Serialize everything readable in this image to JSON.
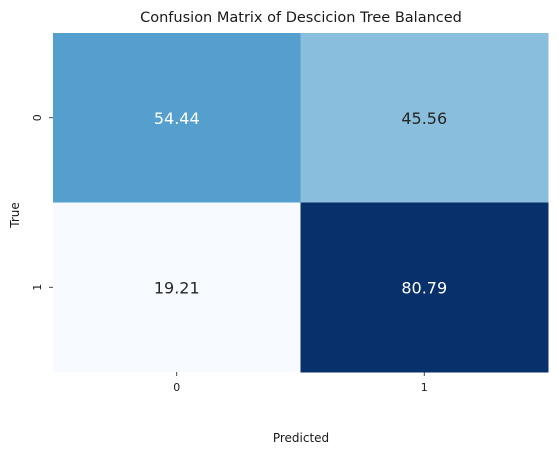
{
  "chart_data": {
    "type": "heatmap",
    "title": "Confusion Matrix of Descicion Tree Balanced",
    "xlabel": "Predicted",
    "ylabel": "True",
    "x_categories": [
      "0",
      "1"
    ],
    "y_categories": [
      "0",
      "1"
    ],
    "values": [
      [
        54.44,
        45.56
      ],
      [
        19.21,
        80.79
      ]
    ],
    "value_labels": [
      [
        "54.44",
        "45.56"
      ],
      [
        "19.21",
        "80.79"
      ]
    ],
    "colormap": "Blues",
    "colorbar": false,
    "grid": false,
    "cell_colors": [
      [
        "#549fcd",
        "#89bedc"
      ],
      [
        "#f7fbff",
        "#08306b"
      ]
    ],
    "text_colors": [
      [
        "#ffffff",
        "#262626"
      ],
      [
        "#262626",
        "#ffffff"
      ]
    ]
  }
}
